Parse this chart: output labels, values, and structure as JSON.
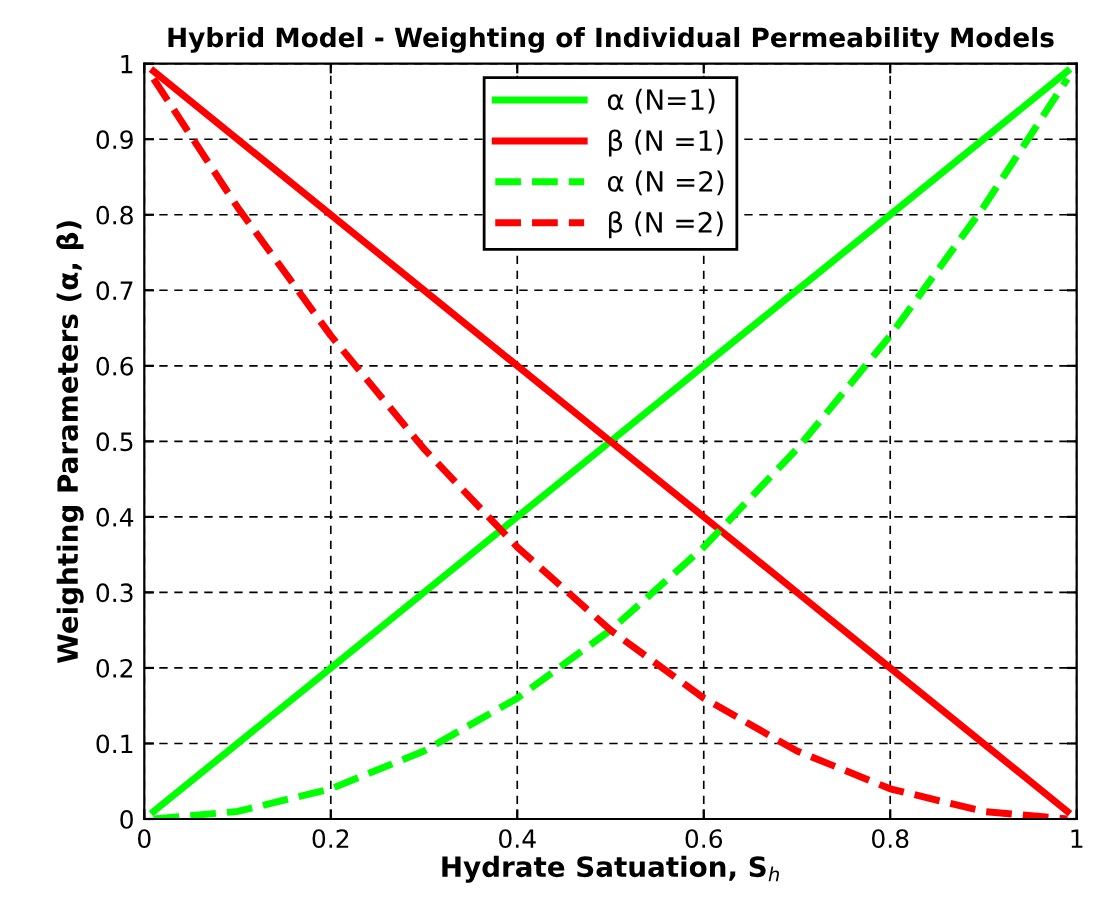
{
  "chart_data": {
    "type": "line",
    "title": "Hybrid Model - Weighting of Individual Permeability Models",
    "xlabel": "Hydrate Satuation, S$_{h}$",
    "ylabel": "Weighting Parameters (α, β)",
    "x": [
      0.01,
      0.1,
      0.2,
      0.3,
      0.4,
      0.5,
      0.6,
      0.7,
      0.8,
      0.9,
      0.99
    ],
    "series": [
      {
        "name": "α (N=1)",
        "color": "#00ff00",
        "line_style": "solid",
        "values": [
          0.01,
          0.1,
          0.2,
          0.3,
          0.4,
          0.5,
          0.6,
          0.7,
          0.8,
          0.9,
          0.99
        ]
      },
      {
        "name": "β (N =1)",
        "color": "#ff0000",
        "line_style": "solid",
        "values": [
          0.99,
          0.9,
          0.8,
          0.7,
          0.6,
          0.5,
          0.4,
          0.3,
          0.2,
          0.1,
          0.01
        ]
      },
      {
        "name": "α (N =2)",
        "color": "#00ff00",
        "line_style": "dashed",
        "values": [
          0.0,
          0.01,
          0.04,
          0.09,
          0.16,
          0.25,
          0.36,
          0.49,
          0.64,
          0.81,
          0.98
        ]
      },
      {
        "name": "β (N =2)",
        "color": "#ff0000",
        "line_style": "dashed",
        "values": [
          0.98,
          0.81,
          0.64,
          0.49,
          0.36,
          0.25,
          0.16,
          0.09,
          0.04,
          0.01,
          0.0
        ]
      }
    ],
    "xlim": [
      0,
      1
    ],
    "xticks": [
      0,
      0.2,
      0.4,
      0.6,
      0.8,
      1
    ],
    "ylim": [
      0,
      1
    ],
    "yticks": [
      0,
      0.1,
      0.2,
      0.3,
      0.4,
      0.5,
      0.6,
      0.7,
      0.8,
      0.9,
      1
    ],
    "grid": true,
    "legend": "top",
    "marker": "none"
  }
}
